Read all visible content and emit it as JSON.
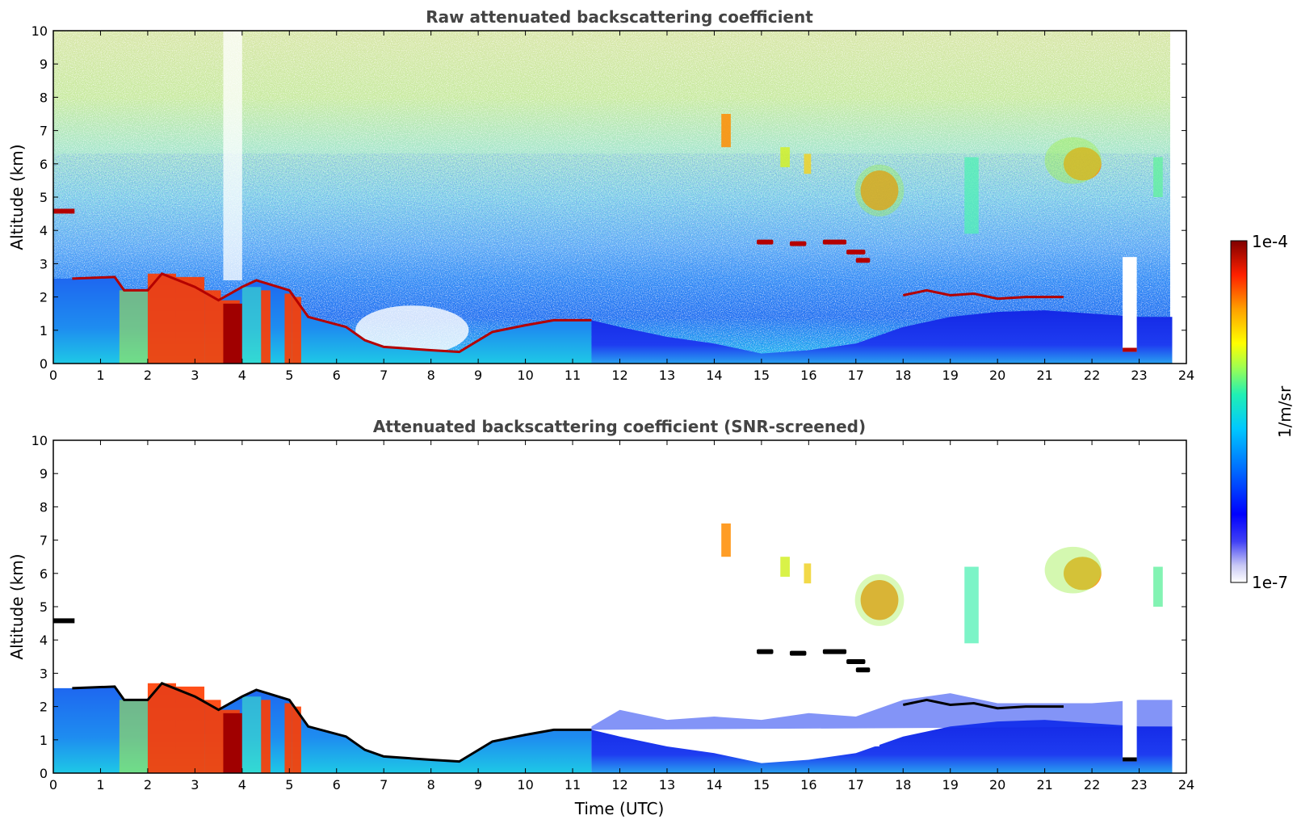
{
  "chart_data": [
    {
      "type": "heatmap",
      "title": "Raw attenuated backscattering coefficient",
      "xlabel": "",
      "ylabel": "Altitude (km)",
      "xlim": [
        0,
        24
      ],
      "ylim": [
        0,
        10
      ],
      "x_ticks": [
        "0",
        "1",
        "2",
        "3",
        "4",
        "5",
        "6",
        "7",
        "8",
        "9",
        "10",
        "11",
        "12",
        "13",
        "14",
        "15",
        "16",
        "17",
        "18",
        "19",
        "20",
        "21",
        "22",
        "23",
        "24"
      ],
      "y_ticks": [
        "0",
        "1",
        "2",
        "3",
        "4",
        "5",
        "6",
        "7",
        "8",
        "9",
        "10"
      ],
      "data_end_time": 23.7,
      "features": [
        {
          "name": "boundary-layer-cloud-top",
          "points": [
            [
              0.4,
              2.55
            ],
            [
              1.3,
              2.6
            ],
            [
              1.5,
              2.2
            ],
            [
              2.0,
              2.2
            ],
            [
              2.3,
              2.7
            ],
            [
              3.0,
              2.3
            ],
            [
              3.5,
              1.9
            ],
            [
              4.0,
              2.3
            ],
            [
              4.3,
              2.5
            ],
            [
              5.0,
              2.2
            ],
            [
              5.4,
              1.4
            ],
            [
              6.2,
              1.1
            ],
            [
              6.6,
              0.7
            ],
            [
              7.0,
              0.5
            ],
            [
              8.0,
              0.4
            ],
            [
              8.6,
              0.35
            ],
            [
              9.3,
              0.95
            ],
            [
              10.0,
              1.15
            ],
            [
              10.6,
              1.3
            ],
            [
              11.4,
              1.3
            ]
          ]
        },
        {
          "name": "elevated-aerosol-layer",
          "points": [
            [
              18.0,
              2.05
            ],
            [
              18.5,
              2.2
            ],
            [
              19.0,
              2.05
            ],
            [
              19.5,
              2.1
            ],
            [
              20.0,
              1.95
            ],
            [
              20.6,
              2.0
            ],
            [
              21.4,
              2.0
            ]
          ]
        },
        {
          "name": "mid-level-cloud",
          "x_range": [
            14.9,
            17.2
          ],
          "altitude": 3.65
        },
        {
          "name": "high-ice-cloud-a",
          "x_range": [
            17.1,
            17.9
          ],
          "alt_range": [
            4.6,
            5.8
          ]
        },
        {
          "name": "high-ice-cloud-b",
          "x_range": [
            21.2,
            22.2
          ],
          "alt_range": [
            5.4,
            6.7
          ]
        }
      ]
    },
    {
      "type": "heatmap",
      "title": "Attenuated backscattering coefficient (SNR-screened)",
      "xlabel": "Time (UTC)",
      "ylabel": "Altitude (km)",
      "xlim": [
        0,
        24
      ],
      "ylim": [
        0,
        10
      ],
      "x_ticks": [
        "0",
        "1",
        "2",
        "3",
        "4",
        "5",
        "6",
        "7",
        "8",
        "9",
        "10",
        "11",
        "12",
        "13",
        "14",
        "15",
        "16",
        "17",
        "18",
        "19",
        "20",
        "21",
        "22",
        "23",
        "24"
      ],
      "y_ticks": [
        "0",
        "1",
        "2",
        "3",
        "4",
        "5",
        "6",
        "7",
        "8",
        "9",
        "10"
      ],
      "data_end_time": 23.7
    }
  ],
  "colorbar": {
    "label": "1/m/sr",
    "max_label": "1e-4",
    "min_label": "1e-7",
    "scale": "log",
    "range": [
      1e-07,
      0.0001
    ],
    "colormap": [
      "#ffffff",
      "#c8c8f5",
      "#0000ff",
      "#0060ff",
      "#00b4ff",
      "#00e6c8",
      "#50ff80",
      "#c8ff30",
      "#ffff00",
      "#ffb400",
      "#ff5000",
      "#e00000",
      "#800000"
    ]
  }
}
